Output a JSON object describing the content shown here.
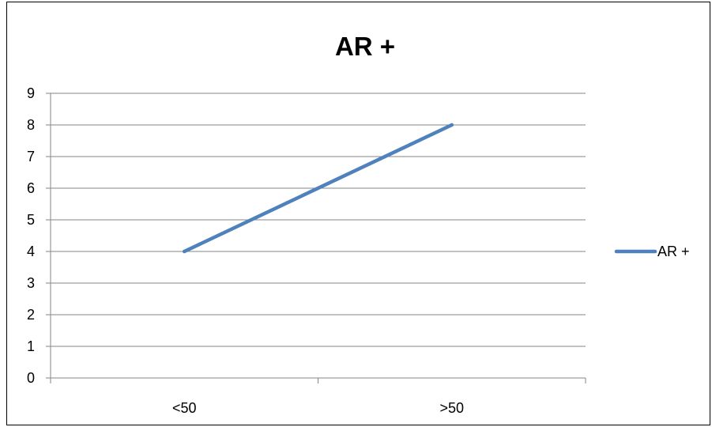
{
  "chart_data": {
    "type": "line",
    "title": "AR +",
    "categories": [
      "<50",
      ">50"
    ],
    "series": [
      {
        "name": "AR +",
        "values": [
          4,
          8
        ],
        "color": "#4F81BD"
      }
    ],
    "ylim": [
      0,
      9
    ],
    "yticks": [
      "0",
      "1",
      "2",
      "3",
      "4",
      "5",
      "6",
      "7",
      "8",
      "9"
    ],
    "grid": true,
    "legend_position": "right",
    "xlabel": "",
    "ylabel": ""
  }
}
